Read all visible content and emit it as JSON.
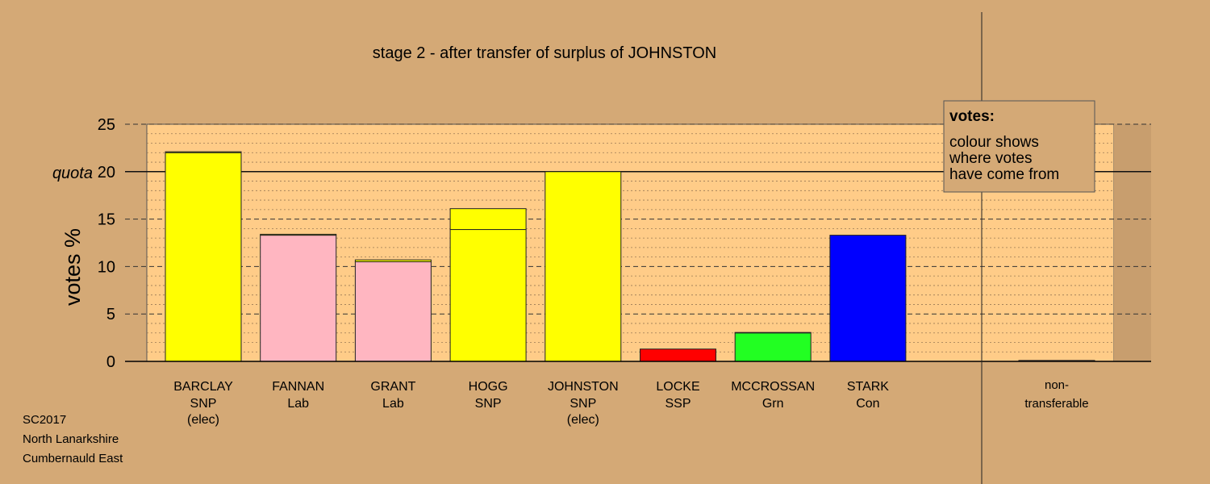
{
  "chart_data": {
    "type": "bar",
    "title": "stage 2 - after transfer of surplus of JOHNSTON",
    "ylabel": "votes %",
    "ylim": [
      0,
      25
    ],
    "yticks": [
      "0",
      "5",
      "10",
      "15",
      "20",
      "25"
    ],
    "quota": {
      "value": 20,
      "label": "quota"
    },
    "bars": [
      {
        "name": "BARCLAY",
        "party": "SNP",
        "note": "(elec)",
        "segments": [
          {
            "value": 22.0,
            "color": "#FFFF00"
          },
          {
            "value": 0.1,
            "color": "#FFFF00"
          }
        ]
      },
      {
        "name": "FANNAN",
        "party": "Lab",
        "note": "",
        "segments": [
          {
            "value": 13.3,
            "color": "#FFB6C1"
          },
          {
            "value": 0.1,
            "color": "#FFFF00"
          }
        ]
      },
      {
        "name": "GRANT",
        "party": "Lab",
        "note": "",
        "segments": [
          {
            "value": 10.5,
            "color": "#FFB6C1"
          },
          {
            "value": 0.2,
            "color": "#FFFF00"
          }
        ]
      },
      {
        "name": "HOGG",
        "party": "SNP",
        "note": "",
        "segments": [
          {
            "value": 13.9,
            "color": "#FFFF00"
          },
          {
            "value": 2.2,
            "color": "#FFFF00"
          }
        ]
      },
      {
        "name": "JOHNSTON",
        "party": "SNP",
        "note": "(elec)",
        "segments": [
          {
            "value": 20.0,
            "color": "#FFFF00"
          }
        ]
      },
      {
        "name": "LOCKE",
        "party": "SSP",
        "note": "",
        "segments": [
          {
            "value": 1.3,
            "color": "#FF0000"
          }
        ]
      },
      {
        "name": "MCCROSSAN",
        "party": "Grn",
        "note": "",
        "segments": [
          {
            "value": 3.0,
            "color": "#22FF22"
          },
          {
            "value": 0.05,
            "color": "#FFFF00"
          }
        ]
      },
      {
        "name": "STARK",
        "party": "Con",
        "note": "",
        "segments": [
          {
            "value": 13.3,
            "color": "#0000FF"
          }
        ]
      }
    ],
    "nontransferable": {
      "label_line1": "non-",
      "label_line2": "transferable",
      "value": 0.1,
      "color": "#D4A976"
    },
    "legend": {
      "title": "votes:",
      "lines": [
        "colour shows",
        "where votes",
        "have come from"
      ],
      "placement": "top-right"
    },
    "grid": true
  },
  "footer": {
    "lines": [
      "SC2017",
      "North Lanarkshire",
      "Cumbernauld East"
    ]
  },
  "colors": {
    "background": "#D4A976",
    "plot_background": "#FFCC88"
  }
}
